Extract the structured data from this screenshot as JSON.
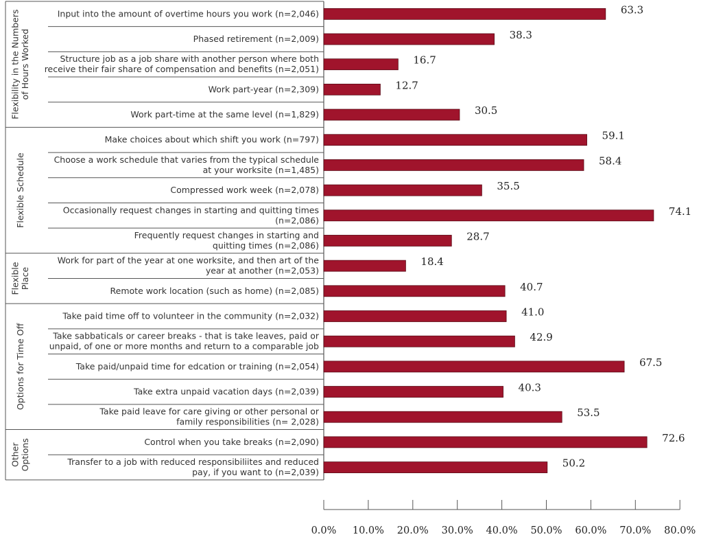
{
  "chart_data": {
    "type": "bar",
    "orientation": "horizontal",
    "title": "",
    "xlabel": "",
    "ylabel": "",
    "xlim": [
      0,
      80
    ],
    "x_ticks": [
      "0.0%",
      "10.0%",
      "20.0%",
      "30.0%",
      "40.0%",
      "50.0%",
      "60.0%",
      "70.0%",
      "80.0%"
    ],
    "bar_color": "#a0142c",
    "groups": [
      {
        "name": "Flexibility in the Numbers of Hours Worked",
        "name_lines": [
          "Flexibility in the Numbers",
          "of Hours Worked"
        ],
        "items": [
          {
            "label": [
              "Input into the amount of overtime hours you work (n=2,046)"
            ],
            "value": 63.3,
            "value_label": "63.3"
          },
          {
            "label": [
              "Phased retirement (n=2,009)"
            ],
            "value": 38.3,
            "value_label": "38.3"
          },
          {
            "label": [
              "Structure job as a job share with another person where both",
              "receive their fair share of compensation and benefits (n=2,051)"
            ],
            "value": 16.7,
            "value_label": "16.7"
          },
          {
            "label": [
              "Work part-year (n=2,309)"
            ],
            "value": 12.7,
            "value_label": "12.7"
          },
          {
            "label": [
              "Work part-time at the same level (n=1,829)"
            ],
            "value": 30.5,
            "value_label": "30.5"
          }
        ]
      },
      {
        "name": "Flexible Schedule",
        "name_lines": [
          "Flexible Schedule"
        ],
        "items": [
          {
            "label": [
              "Make choices about which shift you work (n=797)"
            ],
            "value": 59.1,
            "value_label": "59.1"
          },
          {
            "label": [
              "Choose a work schedule that varies from the typical schedule",
              "at your worksite (n=1,485)"
            ],
            "value": 58.4,
            "value_label": "58.4"
          },
          {
            "label": [
              "Compressed work week (n=2,078)"
            ],
            "value": 35.5,
            "value_label": "35.5"
          },
          {
            "label": [
              "Occasionally request changes in starting and quitting times",
              "(n=2,086)"
            ],
            "value": 74.1,
            "value_label": "74.1"
          },
          {
            "label": [
              "Frequently request changes in starting and",
              "quitting times (n=2,086)"
            ],
            "value": 28.7,
            "value_label": "28.7"
          }
        ]
      },
      {
        "name": "Flexible Place",
        "name_lines": [
          "Flexible",
          "Place"
        ],
        "items": [
          {
            "label": [
              "Work for part of the year at one worksite, and then art of the",
              "year at another (n=2,053)"
            ],
            "value": 18.4,
            "value_label": "18.4"
          },
          {
            "label": [
              "Remote work location (such as home) (n=2,085)"
            ],
            "value": 40.7,
            "value_label": "40.7"
          }
        ]
      },
      {
        "name": "Options for Time Off",
        "name_lines": [
          "Options for Time Off"
        ],
        "items": [
          {
            "label": [
              "Take paid time off to volunteer in the community (n=2,032)"
            ],
            "value": 41.0,
            "value_label": "41.0"
          },
          {
            "label": [
              "Take sabbaticals or career breaks - that is take leaves, paid or",
              "unpaid, of one or more months and return to a comparable job"
            ],
            "value": 42.9,
            "value_label": "42.9"
          },
          {
            "label": [
              "Take paid/unpaid time for edcation or training (n=2,054)"
            ],
            "value": 67.5,
            "value_label": "67.5"
          },
          {
            "label": [
              "Take extra unpaid vacation days (n=2,039)"
            ],
            "value": 40.3,
            "value_label": "40.3"
          },
          {
            "label": [
              "Take paid leave for care giving or other personal or",
              "family responsibilities (n= 2,028)"
            ],
            "value": 53.5,
            "value_label": "53.5"
          }
        ]
      },
      {
        "name": "Other Options",
        "name_lines": [
          "Other",
          "Options"
        ],
        "items": [
          {
            "label": [
              "Control when you take breaks (n=2,090)"
            ],
            "value": 72.6,
            "value_label": "72.6"
          },
          {
            "label": [
              "Transfer to a job with reduced responsibiliites and reduced",
              "pay, if you want to (n=2,039)"
            ],
            "value": 50.2,
            "value_label": "50.2"
          }
        ]
      }
    ]
  }
}
